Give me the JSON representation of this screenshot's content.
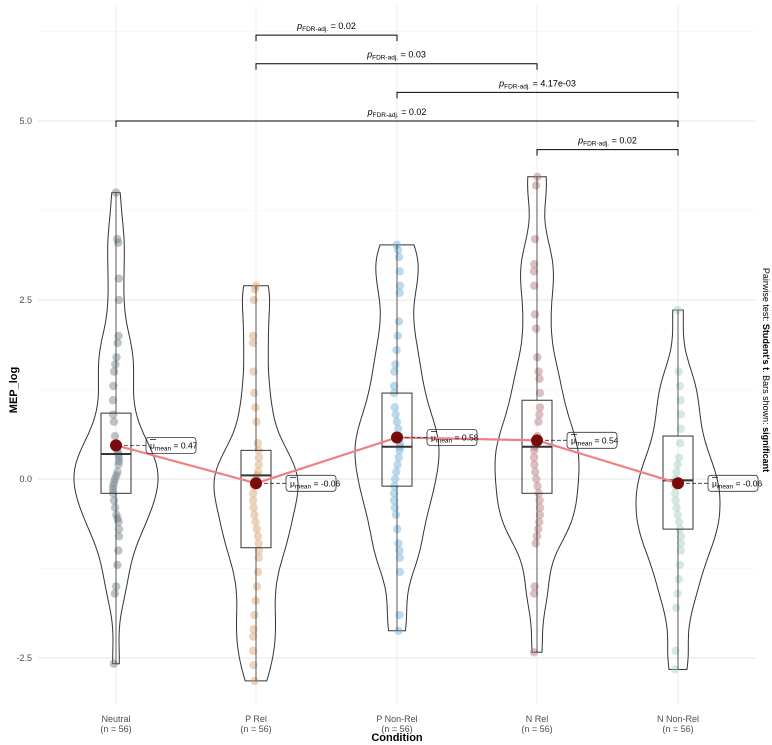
{
  "chart_data": {
    "type": "violin",
    "xlabel": "Condition",
    "ylabel": "MEP_log",
    "ylim": [
      -3.0,
      6.7
    ],
    "yticks": [
      "-2.5",
      "0.0",
      "2.5",
      "5.0"
    ],
    "grid": true,
    "side_note": {
      "prefix": "Pairwise test: ",
      "test": "Student's t",
      "middle": ". Bars shown: ",
      "shown": "significant"
    },
    "groups": [
      {
        "name": "Neutral",
        "n_label": "(n = 56)",
        "color": "#6b7d83",
        "min": -2.58,
        "q1": -0.2,
        "median": 0.35,
        "q3": 0.92,
        "max": 4.0,
        "mean": 0.47,
        "mean_label": "= 0.47",
        "points": [
          4.0,
          3.35,
          3.3,
          2.8,
          2.5,
          2.0,
          1.9,
          1.7,
          1.6,
          1.5,
          1.3,
          1.1,
          0.9,
          0.8,
          0.6,
          0.5,
          0.4,
          0.35,
          0.3,
          0.25,
          0.2,
          0.1,
          0.05,
          0.0,
          -0.05,
          -0.1,
          -0.15,
          -0.2,
          -0.3,
          -0.4,
          -0.5,
          -0.55,
          -0.6,
          -0.7,
          -0.8,
          -1.0,
          -1.2,
          -1.5,
          -1.6,
          -2.58
        ]
      },
      {
        "name": "P Rel",
        "n_label": "(n = 56)",
        "color": "#d9a06c",
        "min": -2.82,
        "q1": -0.96,
        "median": 0.05,
        "q3": 0.4,
        "max": 2.7,
        "mean": -0.06,
        "mean_label": "= -0.06",
        "points": [
          2.7,
          2.65,
          2.5,
          2.0,
          1.9,
          1.5,
          1.2,
          1.0,
          0.8,
          0.5,
          0.4,
          0.3,
          0.2,
          0.1,
          0.05,
          0.0,
          -0.05,
          -0.1,
          -0.2,
          -0.3,
          -0.4,
          -0.5,
          -0.6,
          -0.7,
          -0.8,
          -0.9,
          -1.0,
          -1.1,
          -1.3,
          -1.5,
          -1.7,
          -1.9,
          -2.1,
          -2.2,
          -2.4,
          -2.6,
          -2.82
        ]
      },
      {
        "name": "P Non-Rel",
        "n_label": "(n = 56)",
        "color": "#6aaed6",
        "min": -2.12,
        "q1": -0.1,
        "median": 0.45,
        "q3": 1.2,
        "max": 3.27,
        "mean": 0.58,
        "mean_label": "= 0.58",
        "points": [
          3.27,
          3.2,
          3.1,
          2.9,
          2.7,
          2.6,
          2.2,
          2.0,
          1.8,
          1.6,
          1.5,
          1.3,
          1.2,
          1.0,
          0.9,
          0.8,
          0.7,
          0.6,
          0.5,
          0.45,
          0.4,
          0.3,
          0.2,
          0.1,
          0.0,
          -0.1,
          -0.2,
          -0.3,
          -0.4,
          -0.5,
          -0.7,
          -0.9,
          -1.0,
          -1.1,
          -1.3,
          -1.9,
          -2.12
        ]
      },
      {
        "name": "N Rel",
        "n_label": "(n = 56)",
        "color": "#b07177",
        "min": -2.42,
        "q1": -0.2,
        "median": 0.45,
        "q3": 1.1,
        "max": 4.22,
        "mean": 0.54,
        "mean_label": "= 0.54",
        "points": [
          4.22,
          4.1,
          3.35,
          3.0,
          2.9,
          2.7,
          2.3,
          2.1,
          1.7,
          1.5,
          1.4,
          1.2,
          1.0,
          0.9,
          0.8,
          0.6,
          0.5,
          0.45,
          0.4,
          0.3,
          0.2,
          0.1,
          0.0,
          -0.1,
          -0.2,
          -0.3,
          -0.4,
          -0.5,
          -0.6,
          -0.7,
          -0.8,
          -0.9,
          -1.5,
          -1.6,
          -2.42
        ]
      },
      {
        "name": "N Non-Rel",
        "n_label": "(n = 56)",
        "color": "#9fcfbd",
        "min": -2.66,
        "q1": -0.7,
        "median": -0.02,
        "q3": 0.6,
        "max": 2.36,
        "mean": -0.06,
        "mean_label": "= -0.06",
        "points": [
          2.36,
          1.5,
          1.3,
          1.1,
          0.9,
          0.7,
          0.5,
          0.3,
          0.2,
          0.1,
          0.0,
          -0.1,
          -0.2,
          -0.3,
          -0.4,
          -0.5,
          -0.6,
          -0.7,
          -0.8,
          -0.9,
          -1.0,
          -1.2,
          -1.4,
          -1.6,
          -1.8,
          -2.4,
          -2.66
        ]
      }
    ],
    "comparisons": [
      {
        "from": "P Rel",
        "to": "P Non-Rel",
        "p_label": "= 0.02",
        "y": 6.2
      },
      {
        "from": "P Rel",
        "to": "N Rel",
        "p_label": "= 0.03",
        "y": 5.8
      },
      {
        "from": "P Non-Rel",
        "to": "N Non-Rel",
        "p_label": "= 4.17e-03",
        "y": 5.4
      },
      {
        "from": "Neutral",
        "to": "N Non-Rel",
        "p_label": "= 0.02",
        "y": 5.0
      },
      {
        "from": "N Rel",
        "to": "N Non-Rel",
        "p_label": "= 0.02",
        "y": 4.6
      }
    ],
    "p_symbol": "p",
    "p_subscript": "FDR-adj.",
    "mu_symbol": "μ",
    "mu_subscript": "mean",
    "mean_color": "#7b0a0a",
    "mean_line_color": "#f08080"
  }
}
